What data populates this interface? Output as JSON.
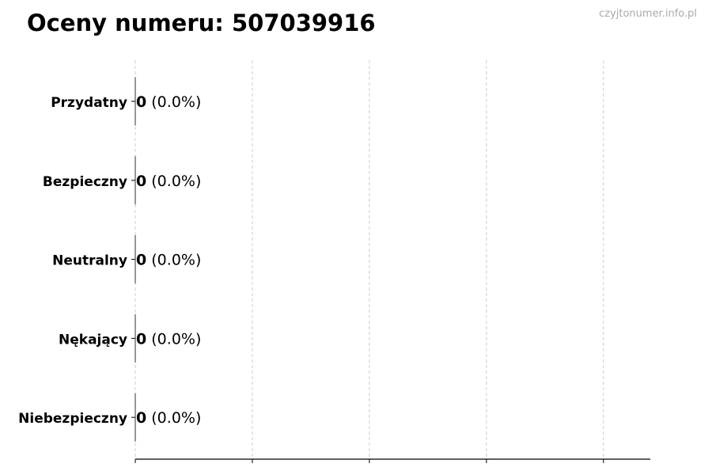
{
  "chart_data": {
    "type": "bar",
    "orientation": "horizontal",
    "title": "Oceny numeru: 507039916",
    "categories": [
      "Przydatny",
      "Bezpieczny",
      "Neutralny",
      "Nękający",
      "Niebezpieczny"
    ],
    "values": [
      0,
      0,
      0,
      0,
      0
    ],
    "data_labels": [
      {
        "count": "0",
        "percent": "(0.0%)"
      },
      {
        "count": "0",
        "percent": "(0.0%)"
      },
      {
        "count": "0",
        "percent": "(0.0%)"
      },
      {
        "count": "0",
        "percent": "(0.0%)"
      },
      {
        "count": "0",
        "percent": "(0.0%)"
      }
    ],
    "xlabel": "",
    "ylabel": "",
    "xlim": [
      0,
      4.4
    ],
    "xticks": [
      0,
      1,
      2,
      3,
      4
    ],
    "xtick_labels_shown": false,
    "grid": "x, dashed",
    "colors": {
      "bar_edge": "#333333",
      "grid": "#cccccc",
      "axis": "#000000"
    }
  },
  "watermark": "czyjtonumer.info.pl"
}
